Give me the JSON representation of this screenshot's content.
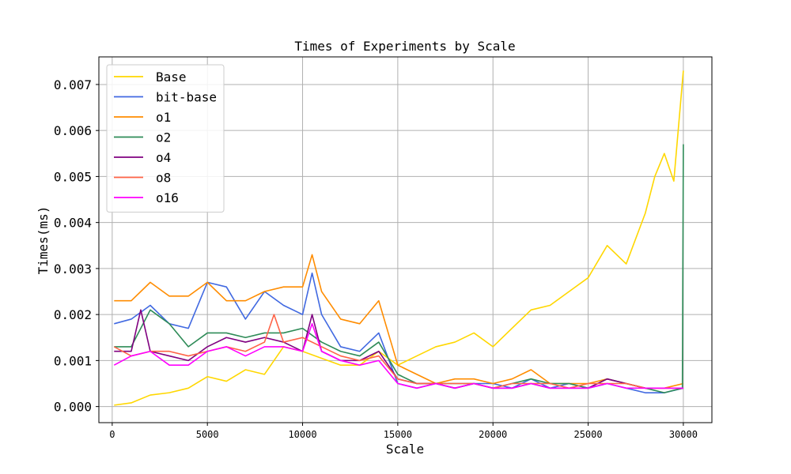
{
  "chart_data": {
    "type": "line",
    "title": "Times of Experiments by Scale",
    "xlabel": "Scale",
    "ylabel": "Times(ms)",
    "xlim": [
      -700,
      31500
    ],
    "ylim": [
      -0.00035,
      0.0076
    ],
    "xticks": [
      0,
      5000,
      10000,
      15000,
      20000,
      25000,
      30000
    ],
    "yticks": [
      0.0,
      0.001,
      0.002,
      0.003,
      0.004,
      0.005,
      0.006,
      0.007
    ],
    "ytick_labels": [
      "0.000",
      "0.001",
      "0.002",
      "0.003",
      "0.004",
      "0.005",
      "0.006",
      "0.007"
    ],
    "grid": true,
    "legend_position": "top-left",
    "series": [
      {
        "name": "Base",
        "color": "#FFD700",
        "x": [
          100,
          1000,
          2000,
          3000,
          4000,
          5000,
          6000,
          7000,
          8000,
          9000,
          10000,
          11000,
          12000,
          13000,
          14000,
          15000,
          16000,
          17000,
          18000,
          19000,
          20000,
          21000,
          22000,
          23000,
          24000,
          25000,
          26000,
          27000,
          28000,
          28500,
          29000,
          29500,
          30000
        ],
        "y": [
          3e-05,
          8e-05,
          0.00025,
          0.0003,
          0.0004,
          0.00065,
          0.00055,
          0.0008,
          0.0007,
          0.0013,
          0.0012,
          0.00105,
          0.0009,
          0.0009,
          0.0012,
          0.0009,
          0.0011,
          0.0013,
          0.0014,
          0.0016,
          0.0013,
          0.0017,
          0.0021,
          0.0022,
          0.0025,
          0.0028,
          0.0035,
          0.0031,
          0.0042,
          0.005,
          0.0055,
          0.0049,
          0.0073
        ]
      },
      {
        "name": "bit-base",
        "color": "#4169E1",
        "x": [
          100,
          1000,
          2000,
          3000,
          4000,
          5000,
          6000,
          7000,
          8000,
          9000,
          10000,
          10500,
          11000,
          12000,
          13000,
          14000,
          15000,
          16000,
          17000,
          18000,
          19000,
          20000,
          21000,
          22000,
          23000,
          24000,
          25000,
          26000,
          27000,
          28000,
          29000,
          30000
        ],
        "y": [
          0.0018,
          0.0019,
          0.0022,
          0.0018,
          0.0017,
          0.0027,
          0.0026,
          0.0019,
          0.0025,
          0.0022,
          0.002,
          0.0029,
          0.002,
          0.0013,
          0.0012,
          0.0016,
          0.0005,
          0.0004,
          0.0005,
          0.0004,
          0.0005,
          0.0005,
          0.0004,
          0.0006,
          0.0004,
          0.0005,
          0.0004,
          0.0005,
          0.0004,
          0.0003,
          0.0003,
          0.0004
        ]
      },
      {
        "name": "o1",
        "color": "#FF8C00",
        "x": [
          100,
          1000,
          2000,
          3000,
          4000,
          5000,
          6000,
          7000,
          8000,
          9000,
          10000,
          10500,
          11000,
          12000,
          13000,
          14000,
          15000,
          16000,
          17000,
          18000,
          19000,
          20000,
          21000,
          22000,
          23000,
          24000,
          25000,
          26000,
          27000,
          28000,
          29000,
          30000
        ],
        "y": [
          0.0023,
          0.0023,
          0.0027,
          0.0024,
          0.0024,
          0.0027,
          0.0023,
          0.0023,
          0.0025,
          0.0026,
          0.0026,
          0.0033,
          0.0025,
          0.0019,
          0.0018,
          0.0023,
          0.0009,
          0.0007,
          0.0005,
          0.0006,
          0.0006,
          0.0005,
          0.0006,
          0.0008,
          0.0005,
          0.0005,
          0.0005,
          0.0006,
          0.0005,
          0.0004,
          0.0004,
          0.0005
        ]
      },
      {
        "name": "o2",
        "color": "#2E8B57",
        "x": [
          100,
          1000,
          2000,
          3000,
          4000,
          5000,
          6000,
          7000,
          8000,
          9000,
          10000,
          11000,
          12000,
          13000,
          14000,
          15000,
          16000,
          17000,
          18000,
          19000,
          20000,
          21000,
          22000,
          23000,
          24000,
          25000,
          26000,
          27000,
          28000,
          29000,
          29950,
          30000
        ],
        "y": [
          0.0013,
          0.0013,
          0.0021,
          0.0018,
          0.0013,
          0.0016,
          0.0016,
          0.0015,
          0.0016,
          0.0016,
          0.0017,
          0.0014,
          0.0012,
          0.0011,
          0.0014,
          0.0007,
          0.0005,
          0.0005,
          0.0005,
          0.0005,
          0.0004,
          0.0005,
          0.0006,
          0.0005,
          0.0005,
          0.0004,
          0.0006,
          0.0005,
          0.0004,
          0.0003,
          0.0004,
          0.0057
        ]
      },
      {
        "name": "o4",
        "color": "#800080",
        "x": [
          100,
          1000,
          1500,
          2000,
          3000,
          4000,
          5000,
          6000,
          7000,
          8000,
          9000,
          10000,
          10500,
          11000,
          12000,
          13000,
          14000,
          15000,
          16000,
          17000,
          18000,
          19000,
          20000,
          21000,
          22000,
          23000,
          24000,
          25000,
          26000,
          27000,
          28000,
          29000,
          30000
        ],
        "y": [
          0.0012,
          0.0012,
          0.0021,
          0.0012,
          0.0011,
          0.001,
          0.0013,
          0.0015,
          0.0014,
          0.0015,
          0.0014,
          0.0012,
          0.002,
          0.0012,
          0.001,
          0.001,
          0.0012,
          0.0006,
          0.0005,
          0.0005,
          0.0004,
          0.0005,
          0.0004,
          0.0004,
          0.0005,
          0.0004,
          0.0004,
          0.0004,
          0.0006,
          0.0005,
          0.0004,
          0.0004,
          0.0004
        ]
      },
      {
        "name": "o8",
        "color": "#FF6347",
        "x": [
          100,
          1000,
          2000,
          3000,
          4000,
          5000,
          6000,
          7000,
          8000,
          8500,
          9000,
          10000,
          11000,
          12000,
          13000,
          14000,
          15000,
          16000,
          17000,
          18000,
          19000,
          20000,
          21000,
          22000,
          23000,
          24000,
          25000,
          26000,
          27000,
          28000,
          29000,
          30000
        ],
        "y": [
          0.0013,
          0.0011,
          0.0012,
          0.0012,
          0.0011,
          0.0012,
          0.0013,
          0.0012,
          0.0014,
          0.002,
          0.0014,
          0.0015,
          0.0013,
          0.0011,
          0.001,
          0.0011,
          0.0006,
          0.0005,
          0.0005,
          0.0005,
          0.0005,
          0.0004,
          0.0005,
          0.0005,
          0.0005,
          0.0004,
          0.0005,
          0.0005,
          0.0005,
          0.0004,
          0.0004,
          0.0004
        ]
      },
      {
        "name": "o16",
        "color": "#FF00FF",
        "x": [
          100,
          1000,
          2000,
          3000,
          4000,
          5000,
          6000,
          7000,
          8000,
          9000,
          10000,
          10500,
          11000,
          12000,
          13000,
          14000,
          15000,
          16000,
          17000,
          18000,
          19000,
          20000,
          21000,
          22000,
          23000,
          24000,
          25000,
          26000,
          27000,
          28000,
          29000,
          30000
        ],
        "y": [
          0.0009,
          0.0011,
          0.0012,
          0.0009,
          0.0009,
          0.0012,
          0.0013,
          0.0011,
          0.0013,
          0.0013,
          0.0012,
          0.0018,
          0.0012,
          0.001,
          0.0009,
          0.001,
          0.0005,
          0.0004,
          0.0005,
          0.0004,
          0.0005,
          0.0004,
          0.0004,
          0.0005,
          0.0004,
          0.0004,
          0.0004,
          0.0005,
          0.0004,
          0.0004,
          0.0004,
          0.0004
        ]
      }
    ]
  }
}
